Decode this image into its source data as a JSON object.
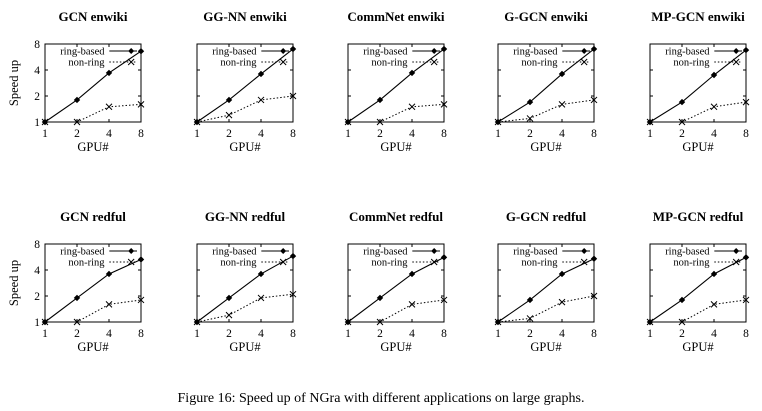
{
  "caption": "Figure 16: Speed up of NGra with different applications on large graphs.",
  "chart_data": [
    {
      "type": "line",
      "title": "GCN enwiki",
      "xlabel": "GPU#",
      "ylabel": "Speed up",
      "x": [
        1,
        2,
        4,
        8
      ],
      "xticks": [
        "1",
        "2",
        "4",
        "8"
      ],
      "yticks": [
        "1",
        "2",
        "4",
        "8"
      ],
      "ylim": [
        1,
        8
      ],
      "yscale": "log2",
      "series": [
        {
          "name": "ring-based",
          "values": [
            1,
            1.8,
            3.7,
            6.6
          ]
        },
        {
          "name": "non-ring",
          "values": [
            1,
            1.0,
            1.5,
            1.6
          ]
        }
      ]
    },
    {
      "type": "line",
      "title": "GG-NN enwiki",
      "xlabel": "GPU#",
      "ylabel": "",
      "x": [
        1,
        2,
        4,
        8
      ],
      "xticks": [
        "1",
        "2",
        "4",
        "8"
      ],
      "yticks": [],
      "ylim": [
        1,
        8
      ],
      "yscale": "log2",
      "series": [
        {
          "name": "ring-based",
          "values": [
            1,
            1.8,
            3.6,
            7.0
          ]
        },
        {
          "name": "non-ring",
          "values": [
            1,
            1.2,
            1.8,
            2.0
          ]
        }
      ]
    },
    {
      "type": "line",
      "title": "CommNet enwiki",
      "xlabel": "GPU#",
      "ylabel": "",
      "x": [
        1,
        2,
        4,
        8
      ],
      "xticks": [
        "1",
        "2",
        "4",
        "8"
      ],
      "yticks": [],
      "ylim": [
        1,
        8
      ],
      "yscale": "log2",
      "series": [
        {
          "name": "ring-based",
          "values": [
            1,
            1.8,
            3.7,
            7.0
          ]
        },
        {
          "name": "non-ring",
          "values": [
            1,
            1.0,
            1.5,
            1.6
          ]
        }
      ]
    },
    {
      "type": "line",
      "title": "G-GCN enwiki",
      "xlabel": "GPU#",
      "ylabel": "",
      "x": [
        1,
        2,
        4,
        8
      ],
      "xticks": [
        "1",
        "2",
        "4",
        "8"
      ],
      "yticks": [],
      "ylim": [
        1,
        8
      ],
      "yscale": "log2",
      "series": [
        {
          "name": "ring-based",
          "values": [
            1,
            1.7,
            3.6,
            7.0
          ]
        },
        {
          "name": "non-ring",
          "values": [
            1,
            1.1,
            1.6,
            1.8
          ]
        }
      ]
    },
    {
      "type": "line",
      "title": "MP-GCN enwiki",
      "xlabel": "GPU#",
      "ylabel": "",
      "x": [
        1,
        2,
        4,
        8
      ],
      "xticks": [
        "1",
        "2",
        "4",
        "8"
      ],
      "yticks": [],
      "ylim": [
        1,
        8
      ],
      "yscale": "log2",
      "series": [
        {
          "name": "ring-based",
          "values": [
            1,
            1.7,
            3.5,
            6.8
          ]
        },
        {
          "name": "non-ring",
          "values": [
            1,
            1.0,
            1.5,
            1.7
          ]
        }
      ]
    },
    {
      "type": "line",
      "title": "GCN redful",
      "xlabel": "GPU#",
      "ylabel": "Speed up",
      "x": [
        1,
        2,
        4,
        8
      ],
      "xticks": [
        "1",
        "2",
        "4",
        "8"
      ],
      "yticks": [
        "1",
        "2",
        "4",
        "8"
      ],
      "ylim": [
        1,
        8
      ],
      "yscale": "log2",
      "series": [
        {
          "name": "ring-based",
          "values": [
            1,
            1.9,
            3.6,
            5.3
          ]
        },
        {
          "name": "non-ring",
          "values": [
            1,
            1.0,
            1.6,
            1.8
          ]
        }
      ]
    },
    {
      "type": "line",
      "title": "GG-NN redful",
      "xlabel": "GPU#",
      "ylabel": "",
      "x": [
        1,
        2,
        4,
        8
      ],
      "xticks": [
        "1",
        "2",
        "4",
        "8"
      ],
      "yticks": [],
      "ylim": [
        1,
        8
      ],
      "yscale": "log2",
      "series": [
        {
          "name": "ring-based",
          "values": [
            1,
            1.9,
            3.6,
            5.8
          ]
        },
        {
          "name": "non-ring",
          "values": [
            1,
            1.2,
            1.9,
            2.1
          ]
        }
      ]
    },
    {
      "type": "line",
      "title": "CommNet redful",
      "xlabel": "GPU#",
      "ylabel": "",
      "x": [
        1,
        2,
        4,
        8
      ],
      "xticks": [
        "1",
        "2",
        "4",
        "8"
      ],
      "yticks": [],
      "ylim": [
        1,
        8
      ],
      "yscale": "log2",
      "series": [
        {
          "name": "ring-based",
          "values": [
            1,
            1.9,
            3.6,
            5.6
          ]
        },
        {
          "name": "non-ring",
          "values": [
            1,
            1.0,
            1.6,
            1.8
          ]
        }
      ]
    },
    {
      "type": "line",
      "title": "G-GCN redful",
      "xlabel": "GPU#",
      "ylabel": "",
      "x": [
        1,
        2,
        4,
        8
      ],
      "xticks": [
        "1",
        "2",
        "4",
        "8"
      ],
      "yticks": [],
      "ylim": [
        1,
        8
      ],
      "yscale": "log2",
      "series": [
        {
          "name": "ring-based",
          "values": [
            1,
            1.8,
            3.6,
            5.4
          ]
        },
        {
          "name": "non-ring",
          "values": [
            1,
            1.1,
            1.7,
            2.0
          ]
        }
      ]
    },
    {
      "type": "line",
      "title": "MP-GCN redful",
      "xlabel": "GPU#",
      "ylabel": "",
      "x": [
        1,
        2,
        4,
        8
      ],
      "xticks": [
        "1",
        "2",
        "4",
        "8"
      ],
      "yticks": [],
      "ylim": [
        1,
        8
      ],
      "yscale": "log2",
      "series": [
        {
          "name": "ring-based",
          "values": [
            1,
            1.8,
            3.6,
            5.6
          ]
        },
        {
          "name": "non-ring",
          "values": [
            1,
            1.0,
            1.6,
            1.8
          ]
        }
      ]
    }
  ]
}
